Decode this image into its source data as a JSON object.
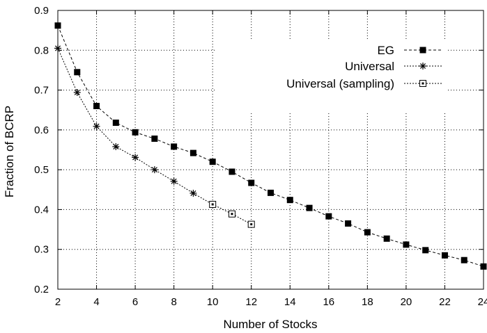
{
  "chart_data": {
    "type": "line",
    "xlabel": "Number of Stocks",
    "ylabel": "Fraction of BCRP",
    "xlim": [
      2,
      24
    ],
    "ylim": [
      0.2,
      0.9
    ],
    "xticks": [
      "2",
      "4",
      "6",
      "8",
      "10",
      "12",
      "14",
      "16",
      "18",
      "20",
      "22",
      "24"
    ],
    "yticks": [
      "0.2",
      "0.3",
      "0.4",
      "0.5",
      "0.6",
      "0.7",
      "0.8",
      "0.9"
    ],
    "grid": true,
    "legend_position": "top-right",
    "series": [
      {
        "name": "EG",
        "marker": "filled-square",
        "line": "dashed",
        "x": [
          2,
          3,
          4,
          5,
          6,
          7,
          8,
          9,
          10,
          11,
          12,
          13,
          14,
          15,
          16,
          17,
          18,
          19,
          20,
          21,
          22,
          23,
          24
        ],
        "y": [
          0.862,
          0.745,
          0.66,
          0.618,
          0.594,
          0.578,
          0.558,
          0.542,
          0.52,
          0.495,
          0.467,
          0.442,
          0.424,
          0.404,
          0.383,
          0.365,
          0.343,
          0.327,
          0.312,
          0.298,
          0.285,
          0.273,
          0.257
        ]
      },
      {
        "name": "Universal",
        "marker": "asterisk",
        "line": "dotted",
        "x": [
          2,
          3,
          4,
          5,
          6,
          7,
          8,
          9
        ],
        "y": [
          0.805,
          0.694,
          0.609,
          0.558,
          0.531,
          0.5,
          0.471,
          0.441
        ]
      },
      {
        "name": "Universal (sampling)",
        "marker": "open-square",
        "line": "dotted",
        "x": [
          9,
          10,
          11,
          12
        ],
        "y": [
          0.441,
          0.413,
          0.389,
          0.363
        ]
      }
    ]
  }
}
